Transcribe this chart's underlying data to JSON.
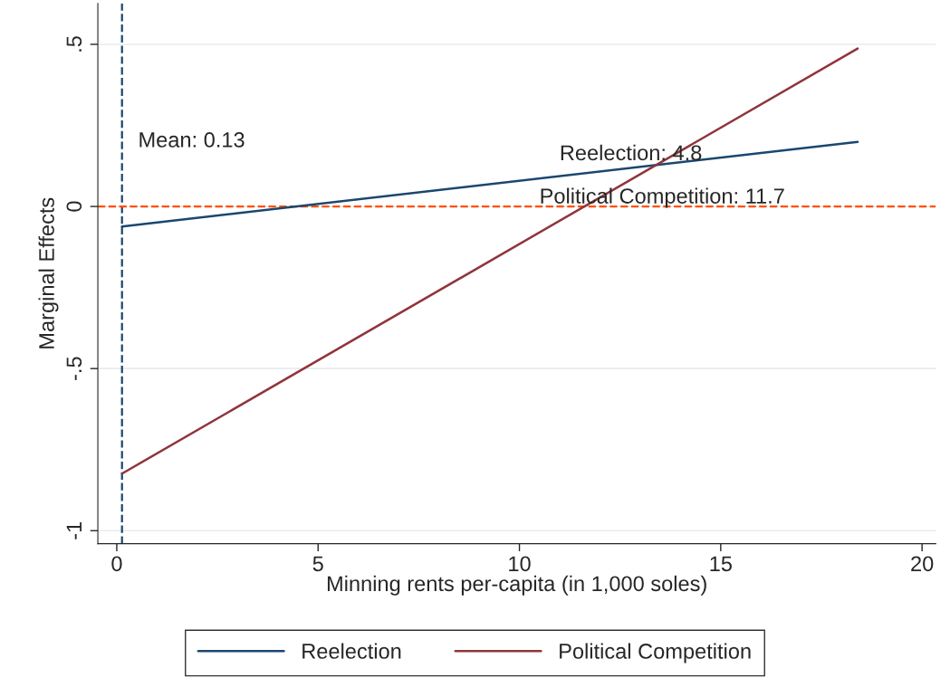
{
  "chart_data": {
    "type": "line",
    "xlabel": "Minning rents per-capita (in 1,000 soles)",
    "ylabel": "Marginal Effects",
    "series": [
      {
        "name": "Reelection",
        "color": "#1a476f",
        "values": [
          -0.062,
          0.199
        ]
      },
      {
        "name": "Political Competition",
        "color": "#90353b",
        "values": [
          -0.824,
          0.487
        ]
      }
    ],
    "x": [
      0.13,
      18.4
    ],
    "xlim": [
      -0.47,
      20.34
    ],
    "ylim": [
      -1.04,
      0.626
    ],
    "xticks": [
      0,
      5,
      10,
      15,
      20
    ],
    "yticks": [
      {
        "value": -1,
        "label": "-1"
      },
      {
        "value": -0.5,
        "label": "-.5"
      },
      {
        "value": 0,
        "label": "0"
      },
      {
        "value": 0.5,
        "label": ".5"
      }
    ],
    "ref_lines": [
      {
        "axis": "x",
        "value": 0.13,
        "label": "Mean: 0.13",
        "color": "#1a476f",
        "line_style": "dashed"
      },
      {
        "axis": "y",
        "value": 0,
        "color": "#ff5000",
        "line_style": "dashed"
      }
    ],
    "annotations": [
      "Reelection: 4.8",
      "Political Competition: 11.7"
    ],
    "grid": "y",
    "legend": "bottom",
    "line_style": "solid",
    "marker": "none"
  }
}
